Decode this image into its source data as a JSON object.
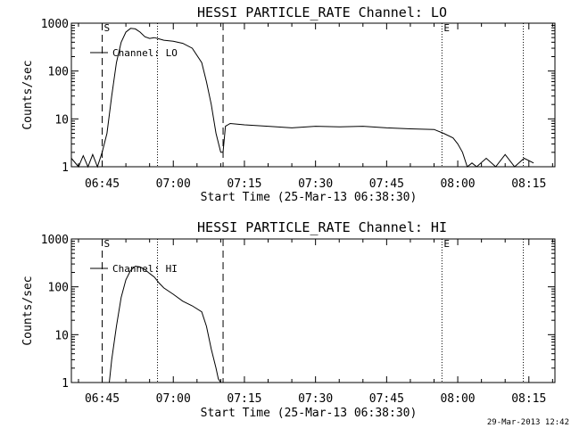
{
  "footer": {
    "timestamp": "29-Mar-2013 12:42"
  },
  "chart_data": [
    {
      "type": "line",
      "title": "HESSI PARTICLE_RATE Channel: LO",
      "xlabel": "Start Time (25-Mar-13 06:38:30)",
      "ylabel": "Counts/sec",
      "yscale": "log",
      "ylim": [
        1,
        1000
      ],
      "xlim": [
        "06:38:30",
        "08:20:30"
      ],
      "x_tick_labels": [
        "06:45",
        "07:00",
        "07:15",
        "07:30",
        "07:45",
        "08:00",
        "08:15"
      ],
      "y_tick_labels": [
        "1",
        "10",
        "100",
        "1000"
      ],
      "legend": {
        "placement": "top-left",
        "entries": [
          "Channel: LO"
        ]
      },
      "markers": [
        {
          "label": "S",
          "time": "06:45:00",
          "style": "dashed"
        },
        {
          "label": "",
          "time": "06:56:40",
          "style": "dotted"
        },
        {
          "label": "",
          "time": "07:10:30",
          "style": "dashed"
        },
        {
          "label": "E",
          "time": "07:56:40",
          "style": "dotted"
        },
        {
          "label": "",
          "time": "08:13:50",
          "style": "dotted"
        }
      ],
      "series": [
        {
          "name": "Channel: LO",
          "x": [
            "06:38:30",
            "06:40:00",
            "06:41:00",
            "06:42:00",
            "06:43:00",
            "06:44:00",
            "06:45:00",
            "06:46:00",
            "06:47:00",
            "06:48:00",
            "06:49:00",
            "06:50:00",
            "06:51:00",
            "06:52:00",
            "06:53:00",
            "06:54:00",
            "06:55:00",
            "06:56:00",
            "06:57:00",
            "06:58:00",
            "07:00:00",
            "07:02:00",
            "07:04:00",
            "07:06:00",
            "07:07:00",
            "07:08:00",
            "07:09:00",
            "07:10:00",
            "07:10:30",
            "07:11:00",
            "07:12:00",
            "07:15:00",
            "07:20:00",
            "07:25:00",
            "07:30:00",
            "07:35:00",
            "07:40:00",
            "07:45:00",
            "07:50:00",
            "07:55:00",
            "07:57:00",
            "07:59:00",
            "08:00:00",
            "08:01:00",
            "08:02:00",
            "08:03:00",
            "08:04:00",
            "08:06:00",
            "08:08:00",
            "08:10:00",
            "08:12:00",
            "08:14:00",
            "08:16:00"
          ],
          "y": [
            1.5,
            1,
            1.7,
            1,
            1.8,
            1,
            2,
            5,
            30,
            150,
            400,
            650,
            780,
            760,
            650,
            520,
            480,
            500,
            470,
            440,
            420,
            380,
            300,
            150,
            60,
            20,
            5,
            2,
            2,
            7,
            8,
            7.5,
            7,
            6.5,
            7,
            6.8,
            7,
            6.5,
            6.2,
            6,
            5,
            4,
            3,
            2,
            1,
            1.2,
            1,
            1.5,
            1,
            1.8,
            1,
            1.5,
            1.2
          ]
        }
      ]
    },
    {
      "type": "line",
      "title": "HESSI PARTICLE_RATE Channel: HI",
      "xlabel": "Start Time (25-Mar-13 06:38:30)",
      "ylabel": "Counts/sec",
      "yscale": "log",
      "ylim": [
        1,
        1000
      ],
      "xlim": [
        "06:38:30",
        "08:20:30"
      ],
      "x_tick_labels": [
        "06:45",
        "07:00",
        "07:15",
        "07:30",
        "07:45",
        "08:00",
        "08:15"
      ],
      "y_tick_labels": [
        "1",
        "10",
        "100",
        "1000"
      ],
      "legend": {
        "placement": "top-left",
        "entries": [
          "Channel: HI"
        ]
      },
      "markers": [
        {
          "label": "S",
          "time": "06:45:00",
          "style": "dashed"
        },
        {
          "label": "",
          "time": "06:56:40",
          "style": "dotted"
        },
        {
          "label": "",
          "time": "07:10:30",
          "style": "dashed"
        },
        {
          "label": "E",
          "time": "07:56:40",
          "style": "dotted"
        },
        {
          "label": "",
          "time": "08:13:50",
          "style": "dotted"
        }
      ],
      "series": [
        {
          "name": "Channel: HI",
          "x": [
            "06:46:30",
            "06:47:00",
            "06:48:00",
            "06:49:00",
            "06:50:00",
            "06:51:00",
            "06:52:00",
            "06:53:00",
            "06:54:00",
            "06:55:00",
            "06:56:00",
            "06:57:00",
            "06:58:00",
            "07:00:00",
            "07:02:00",
            "07:04:00",
            "07:06:00",
            "07:07:00",
            "07:08:00",
            "07:09:00",
            "07:09:30",
            "07:10:00"
          ],
          "y": [
            1,
            3,
            15,
            60,
            140,
            220,
            270,
            260,
            230,
            190,
            160,
            120,
            95,
            70,
            50,
            40,
            30,
            15,
            5,
            2,
            1.2,
            1
          ]
        }
      ]
    }
  ]
}
